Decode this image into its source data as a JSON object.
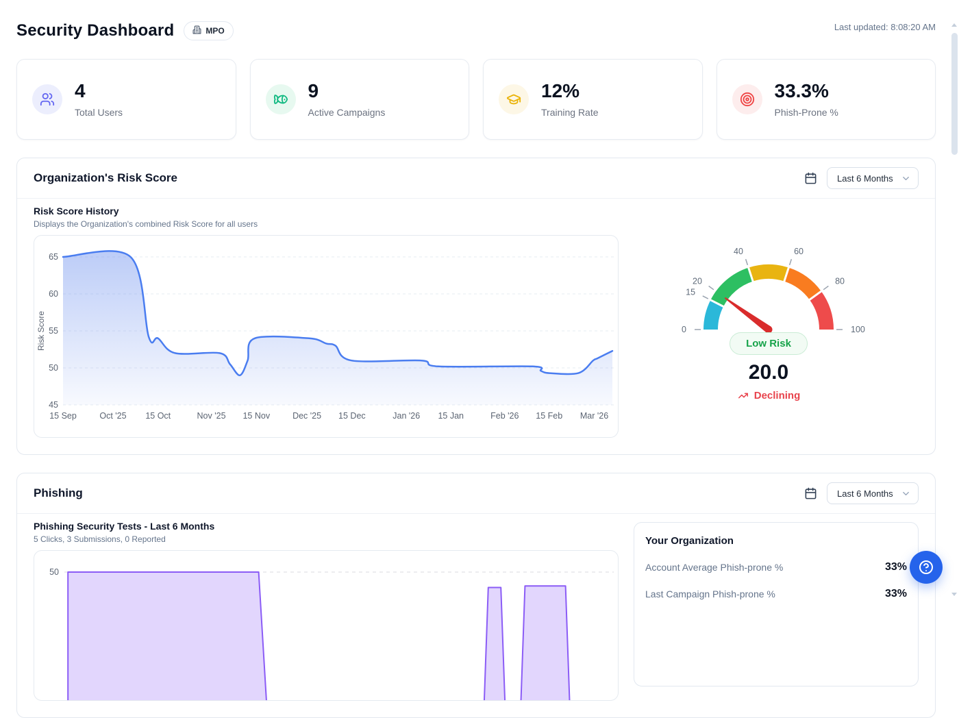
{
  "header": {
    "title": "Security Dashboard",
    "org_badge": "MPO",
    "last_updated": "Last updated: 8:08:20 AM"
  },
  "stats": [
    {
      "value": "4",
      "label": "Total Users",
      "icon": "users-icon",
      "color": "#6366f1",
      "bg": "#eceefd"
    },
    {
      "value": "9",
      "label": "Active Campaigns",
      "icon": "fish-icon",
      "color": "#10b981",
      "bg": "#e7f9f0"
    },
    {
      "value": "12%",
      "label": "Training Rate",
      "icon": "graduation-cap-icon",
      "color": "#eab308",
      "bg": "#fdf7e6"
    },
    {
      "value": "33.3%",
      "label": "Phish-Prone %",
      "icon": "target-icon",
      "color": "#ef4444",
      "bg": "#fdeded"
    }
  ],
  "risk_section": {
    "title": "Organization's Risk Score",
    "period_filter": "Last 6 Months",
    "chart_title": "Risk Score History",
    "chart_subtitle": "Displays the Organization's combined Risk Score for all users",
    "gauge_status": "Low Risk",
    "gauge_value": "20.0",
    "gauge_trend": "Declining"
  },
  "phishing_section": {
    "title": "Phishing",
    "period_filter": "Last 6 Months",
    "chart_title": "Phishing Security Tests - Last 6 Months",
    "chart_subtitle": "5 Clicks, 3 Submissions, 0 Reported",
    "org_panel": {
      "title": "Your Organization",
      "rows": [
        {
          "label": "Account Average Phish-prone %",
          "value": "33%"
        },
        {
          "label": "Last Campaign Phish-prone %",
          "value": "33%"
        }
      ]
    }
  },
  "chart_data": [
    {
      "type": "area",
      "title": "Risk Score History",
      "ylabel": "Risk Score",
      "ylim": [
        45,
        65
      ],
      "y_ticks": [
        45,
        50,
        55,
        60,
        65
      ],
      "grid": "dashed horizontal",
      "line_color": "#4a7df0",
      "fill_color": "#6a8eee",
      "x_ticks": [
        {
          "label": "15 Sep",
          "f": 0.0
        },
        {
          "label": "Oct '25",
          "f": 0.091
        },
        {
          "label": "15 Oct",
          "f": 0.173
        },
        {
          "label": "Nov '25",
          "f": 0.27
        },
        {
          "label": "15 Nov",
          "f": 0.352
        },
        {
          "label": "Dec '25",
          "f": 0.444
        },
        {
          "label": "15 Dec",
          "f": 0.526
        },
        {
          "label": "Jan '26",
          "f": 0.625
        },
        {
          "label": "15 Jan",
          "f": 0.706
        },
        {
          "label": "Feb '26",
          "f": 0.804
        },
        {
          "label": "15 Feb",
          "f": 0.885
        },
        {
          "label": "Mar '26",
          "f": 0.967
        }
      ],
      "points": [
        {
          "f": 0.0,
          "v": 65
        },
        {
          "f": 0.123,
          "v": 65
        },
        {
          "f": 0.156,
          "v": 54.2
        },
        {
          "f": 0.173,
          "v": 54
        },
        {
          "f": 0.204,
          "v": 52
        },
        {
          "f": 0.285,
          "v": 52
        },
        {
          "f": 0.304,
          "v": 50.5
        },
        {
          "f": 0.322,
          "v": 49
        },
        {
          "f": 0.336,
          "v": 51
        },
        {
          "f": 0.349,
          "v": 54
        },
        {
          "f": 0.448,
          "v": 54
        },
        {
          "f": 0.479,
          "v": 53.3
        },
        {
          "f": 0.496,
          "v": 53
        },
        {
          "f": 0.525,
          "v": 51
        },
        {
          "f": 0.652,
          "v": 51
        },
        {
          "f": 0.683,
          "v": 50.2
        },
        {
          "f": 0.854,
          "v": 50.2
        },
        {
          "f": 0.87,
          "v": 49.6
        },
        {
          "f": 0.885,
          "v": 49.3
        },
        {
          "f": 0.938,
          "v": 49.3
        },
        {
          "f": 0.965,
          "v": 51
        },
        {
          "f": 0.973,
          "v": 51.3
        },
        {
          "f": 1.0,
          "v": 52.3
        }
      ]
    },
    {
      "type": "gauge",
      "value": 20.0,
      "status": "Low Risk",
      "trend": "Declining",
      "range": [
        0,
        100
      ],
      "ticks": [
        0,
        15,
        20,
        40,
        60,
        80,
        100
      ],
      "segments": [
        {
          "from": 0,
          "to": 15,
          "color": "#2bb8d9"
        },
        {
          "from": 15,
          "to": 40,
          "color": "#2dbf62"
        },
        {
          "from": 40,
          "to": 60,
          "color": "#e9b411"
        },
        {
          "from": 60,
          "to": 80,
          "color": "#f97c20"
        },
        {
          "from": 80,
          "to": 100,
          "color": "#ee4b4b"
        }
      ],
      "needle_color": "#d92c2c"
    },
    {
      "type": "area",
      "title": "Phishing Security Tests - Last 6 Months",
      "subtitle": "5 Clicks, 3 Submissions, 0 Reported",
      "y_ticks": [
        50
      ],
      "color": "#8b5cf6",
      "note": "chart clipped by viewport bottom; later bump heights estimated",
      "points": [
        {
          "f": 0.004,
          "v": 50
        },
        {
          "f": 0.352,
          "v": 50
        },
        {
          "f": 0.369,
          "v": 0
        },
        {
          "f": 0.762,
          "v": 0
        },
        {
          "f": 0.771,
          "v": 45
        },
        {
          "f": 0.794,
          "v": 45
        },
        {
          "f": 0.803,
          "v": 0
        },
        {
          "f": 0.829,
          "v": 0
        },
        {
          "f": 0.838,
          "v": 45.5
        },
        {
          "f": 0.912,
          "v": 45.5
        },
        {
          "f": 0.921,
          "v": 0
        },
        {
          "f": 1.0,
          "v": 0
        }
      ]
    }
  ]
}
